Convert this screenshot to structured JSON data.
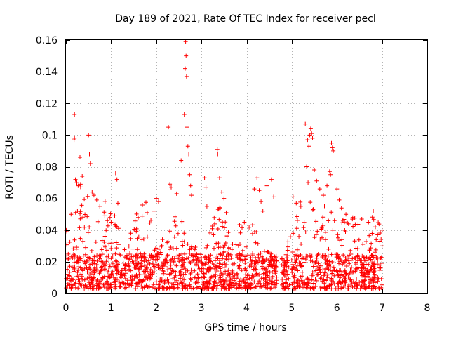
{
  "chart_data": {
    "type": "scatter",
    "title": "Day 189 of 2021, Rate Of TEC Index for receiver pecl",
    "xlabel": "GPS time / hours",
    "ylabel": "ROTI / TECUs",
    "xlim": [
      0,
      8
    ],
    "ylim": [
      0,
      0.16
    ],
    "xticks": [
      0,
      1,
      2,
      3,
      4,
      5,
      6,
      7,
      8
    ],
    "yticks": [
      0,
      0.02,
      0.04,
      0.06,
      0.08,
      0.1,
      0.12,
      0.14,
      0.16
    ],
    "xtick_labels": [
      "0",
      "1",
      "2",
      "3",
      "4",
      "5",
      "6",
      "7",
      "8"
    ],
    "ytick_labels": [
      "0",
      "0.02",
      "0.04",
      "0.06",
      "0.08",
      "0.1",
      "0.12",
      "0.14",
      "0.16"
    ],
    "grid": true,
    "marker": "+",
    "color": "#ff0000",
    "series": [
      {
        "name": "ROTI",
        "data_range": {
          "x_min": 0.0,
          "x_max": 7.0,
          "gap": [
            4.67,
            4.77
          ]
        },
        "points": [
          [
            0.0,
            0.04
          ],
          [
            0.02,
            0.039
          ],
          [
            0.19,
            0.113
          ],
          [
            0.19,
            0.098
          ],
          [
            0.18,
            0.097
          ],
          [
            0.21,
            0.072
          ],
          [
            0.24,
            0.07
          ],
          [
            0.27,
            0.068
          ],
          [
            0.31,
            0.086
          ],
          [
            0.36,
            0.074
          ],
          [
            0.5,
            0.1
          ],
          [
            0.52,
            0.088
          ],
          [
            0.54,
            0.082
          ],
          [
            0.58,
            0.064
          ],
          [
            0.62,
            0.062
          ],
          [
            0.68,
            0.059
          ],
          [
            0.75,
            0.055
          ],
          [
            0.86,
            0.049
          ],
          [
            0.92,
            0.046
          ],
          [
            1.0,
            0.045
          ],
          [
            1.1,
            0.076
          ],
          [
            1.13,
            0.072
          ],
          [
            1.15,
            0.057
          ],
          [
            1.6,
            0.048
          ],
          [
            1.8,
            0.051
          ],
          [
            1.95,
            0.052
          ],
          [
            2.0,
            0.06
          ],
          [
            2.05,
            0.058
          ],
          [
            2.27,
            0.105
          ],
          [
            2.3,
            0.069
          ],
          [
            2.33,
            0.067
          ],
          [
            2.45,
            0.063
          ],
          [
            2.55,
            0.084
          ],
          [
            2.62,
            0.113
          ],
          [
            2.64,
            0.142
          ],
          [
            2.65,
            0.159
          ],
          [
            2.66,
            0.15
          ],
          [
            2.67,
            0.137
          ],
          [
            2.68,
            0.105
          ],
          [
            2.7,
            0.093
          ],
          [
            2.72,
            0.088
          ],
          [
            2.74,
            0.075
          ],
          [
            2.76,
            0.068
          ],
          [
            2.78,
            0.062
          ],
          [
            3.07,
            0.073
          ],
          [
            3.1,
            0.067
          ],
          [
            3.12,
            0.055
          ],
          [
            3.35,
            0.091
          ],
          [
            3.36,
            0.088
          ],
          [
            3.4,
            0.073
          ],
          [
            3.45,
            0.064
          ],
          [
            3.5,
            0.06
          ],
          [
            3.55,
            0.051
          ],
          [
            3.95,
            0.045
          ],
          [
            4.17,
            0.066
          ],
          [
            4.23,
            0.073
          ],
          [
            4.28,
            0.065
          ],
          [
            4.32,
            0.058
          ],
          [
            4.36,
            0.052
          ],
          [
            4.45,
            0.068
          ],
          [
            4.55,
            0.072
          ],
          [
            4.6,
            0.061
          ],
          [
            5.03,
            0.061
          ],
          [
            5.1,
            0.057
          ],
          [
            5.2,
            0.055
          ],
          [
            5.3,
            0.107
          ],
          [
            5.35,
            0.097
          ],
          [
            5.38,
            0.093
          ],
          [
            5.4,
            0.1
          ],
          [
            5.42,
            0.104
          ],
          [
            5.44,
            0.101
          ],
          [
            5.46,
            0.098
          ],
          [
            5.33,
            0.08
          ],
          [
            5.36,
            0.07
          ],
          [
            5.5,
            0.078
          ],
          [
            5.55,
            0.071
          ],
          [
            5.62,
            0.066
          ],
          [
            5.7,
            0.062
          ],
          [
            5.78,
            0.068
          ],
          [
            5.84,
            0.077
          ],
          [
            5.86,
            0.075
          ],
          [
            5.88,
            0.095
          ],
          [
            5.9,
            0.092
          ],
          [
            5.92,
            0.09
          ],
          [
            6.0,
            0.066
          ],
          [
            6.05,
            0.059
          ],
          [
            6.1,
            0.054
          ],
          [
            6.2,
            0.05
          ],
          [
            6.35,
            0.048
          ],
          [
            6.55,
            0.047
          ],
          [
            6.7,
            0.045
          ],
          [
            6.85,
            0.042
          ],
          [
            6.9,
            0.037
          ],
          [
            6.95,
            0.033
          ],
          [
            7.0,
            0.03
          ]
        ],
        "baseline_band": {
          "min": 0.003,
          "typical_max": 0.025,
          "description": "dense cluster of samples every ~30 s"
        }
      }
    ]
  }
}
